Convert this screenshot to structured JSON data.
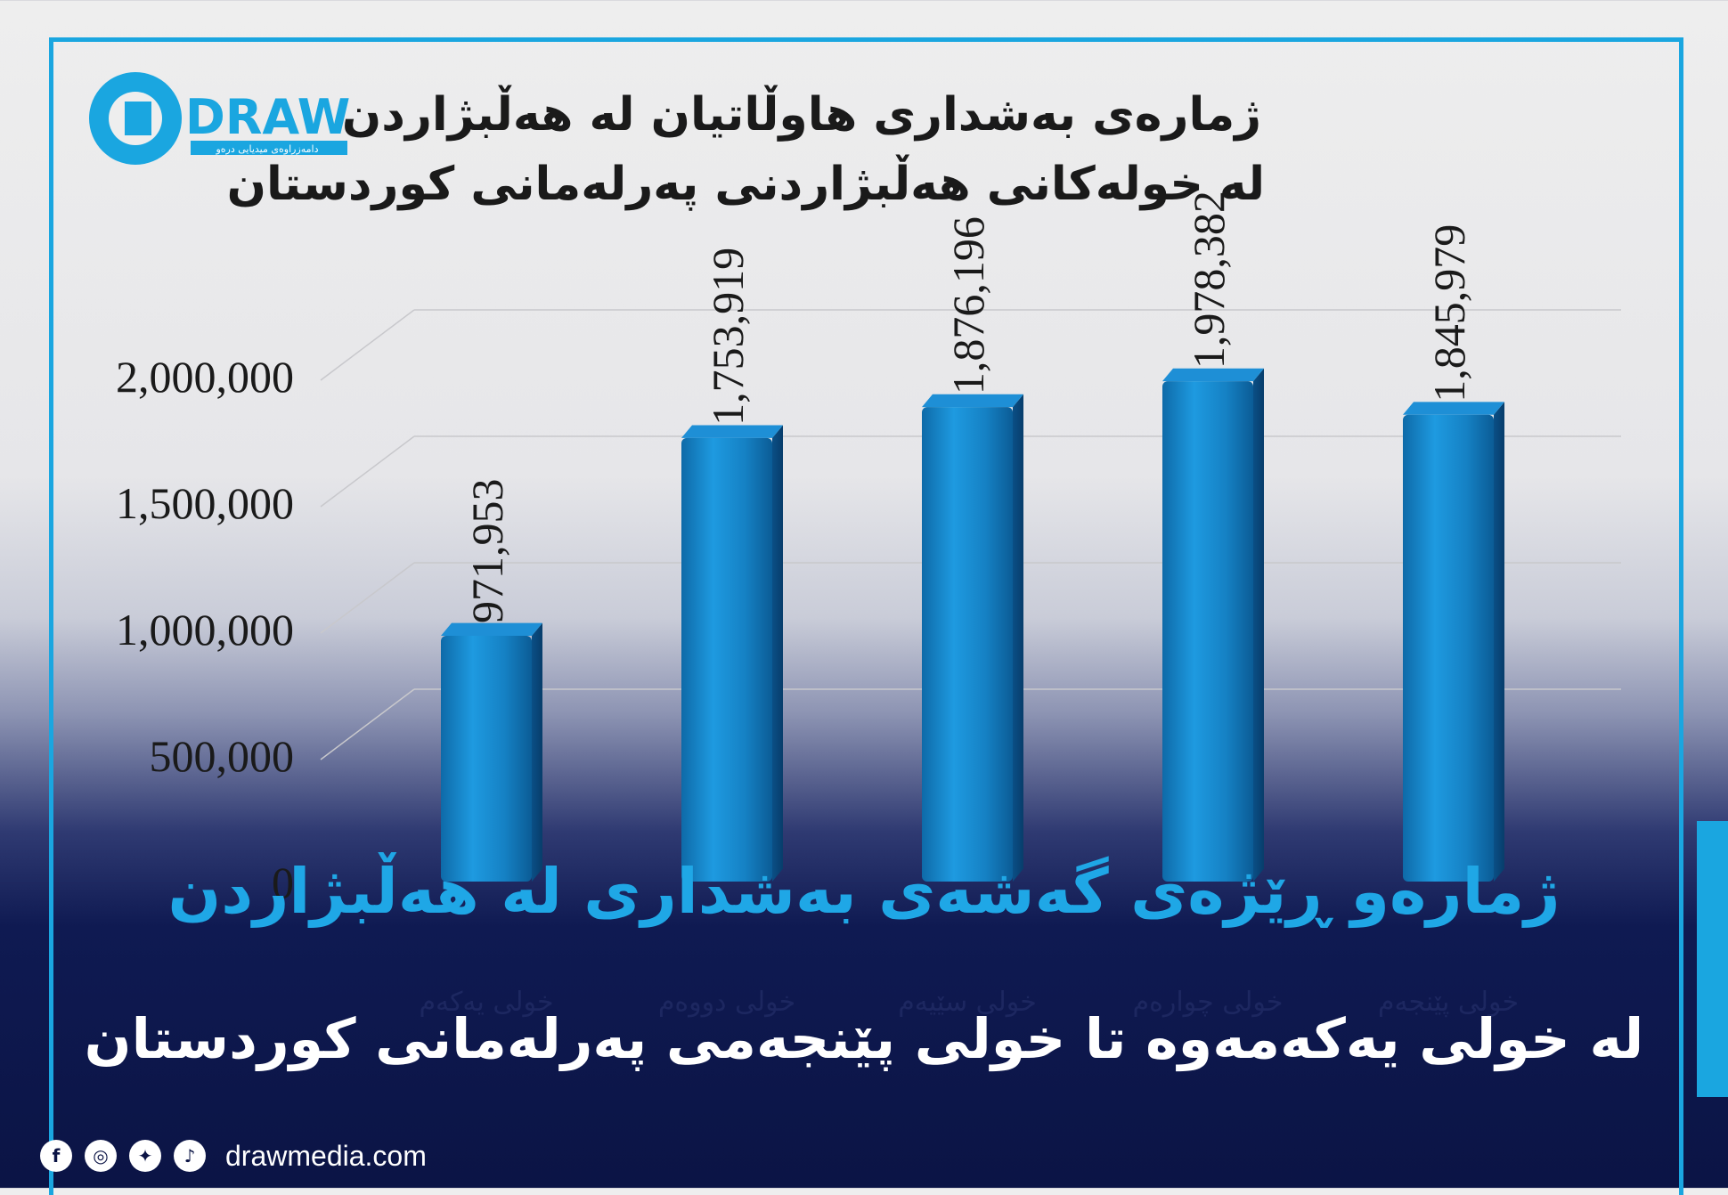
{
  "logo": {
    "text": "DRAW",
    "tagline": "دامەزراوەی میدیایی درەو"
  },
  "chart_data": {
    "type": "bar",
    "title_lines": [
      "ژمارەی بەشداری هاوڵاتیان لە هەڵبژاردن",
      "لە خولەکانی هەڵبژاردنی پەرلەمانی کوردستان"
    ],
    "categories": [
      "خولی یەکەم",
      "خولی دووەم",
      "خولی سێیەم",
      "خولی چوارەم",
      "خولی پێنجەم"
    ],
    "values": [
      971953,
      1753919,
      1876196,
      1978382,
      1845979
    ],
    "value_labels": [
      "971,953",
      "1,753,919",
      "1,876,196",
      "1,978,382",
      "1,845,979"
    ],
    "y_ticks": [
      "0",
      "500,000",
      "1,000,000",
      "1,500,000",
      "2,000,000"
    ],
    "ylim": [
      0,
      2500000
    ],
    "grid": true,
    "bar_color": "#1b8fd0"
  },
  "overlay": {
    "title": "ژمارەو ڕێژەی گەشەی بەشداری لە هەڵبژاردن",
    "subtitle": "لە خولی یەکەمەوە تا خولی پێنجەمی پەرلەمانی کوردستان"
  },
  "footer": {
    "icons": [
      "facebook-icon",
      "instagram-icon",
      "twitter-icon",
      "tiktok-icon"
    ],
    "website": "drawmedia.com"
  },
  "colors": {
    "accent": "#1aa6e0",
    "dark": "#0b1445"
  }
}
